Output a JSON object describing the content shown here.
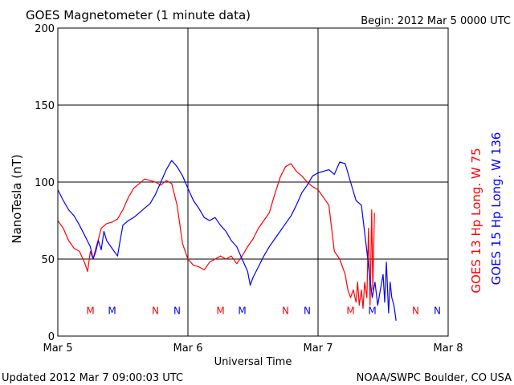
{
  "header": {
    "title": "GOES Magnetometer (1 minute data)",
    "begin": "Begin:  2012 Mar 5 0000 UTC"
  },
  "footer": {
    "updated": "Updated 2012 Mar  7 09:00:03 UTC",
    "source": "NOAA/SWPC Boulder, CO USA"
  },
  "chart_data": {
    "type": "line",
    "title": "GOES Magnetometer (1 minute data)",
    "xlabel": "Universal Time",
    "ylabel": "NanoTesla (nT)",
    "xlim": [
      0,
      72
    ],
    "ylim": [
      0,
      200
    ],
    "x_unit": "hours since 2012 Mar 5 0000 UTC",
    "x_ticks": [
      {
        "value": 0,
        "label": "Mar 5"
      },
      {
        "value": 24,
        "label": "Mar 6"
      },
      {
        "value": 48,
        "label": "Mar 7"
      },
      {
        "value": 72,
        "label": "Mar 8"
      }
    ],
    "y_ticks": [
      0,
      50,
      100,
      150,
      200
    ],
    "grid": true,
    "series": [
      {
        "name": "GOES 13 Hp  Long. W 75",
        "color": "#ff0000",
        "points": [
          [
            0,
            75
          ],
          [
            1,
            70
          ],
          [
            2,
            62
          ],
          [
            3,
            57
          ],
          [
            4,
            55
          ],
          [
            5,
            47
          ],
          [
            5.5,
            42
          ],
          [
            6,
            55
          ],
          [
            6.5,
            50
          ],
          [
            7,
            57
          ],
          [
            7.5,
            63
          ],
          [
            8,
            70
          ],
          [
            9,
            73
          ],
          [
            10,
            74
          ],
          [
            11,
            76
          ],
          [
            12,
            82
          ],
          [
            13,
            90
          ],
          [
            14,
            96
          ],
          [
            15,
            99
          ],
          [
            16,
            102
          ],
          [
            17,
            101
          ],
          [
            18,
            100
          ],
          [
            19,
            98
          ],
          [
            20,
            101
          ],
          [
            21,
            99
          ],
          [
            22,
            85
          ],
          [
            23,
            60
          ],
          [
            24,
            50
          ],
          [
            25,
            46
          ],
          [
            26,
            45
          ],
          [
            27,
            43
          ],
          [
            28,
            48
          ],
          [
            29,
            50
          ],
          [
            30,
            52
          ],
          [
            31,
            50
          ],
          [
            32,
            52
          ],
          [
            33,
            47
          ],
          [
            34,
            52
          ],
          [
            35,
            58
          ],
          [
            36,
            63
          ],
          [
            37,
            70
          ],
          [
            38,
            75
          ],
          [
            39,
            80
          ],
          [
            40,
            92
          ],
          [
            41,
            103
          ],
          [
            42,
            110
          ],
          [
            43,
            112
          ],
          [
            44,
            107
          ],
          [
            45,
            104
          ],
          [
            46,
            100
          ],
          [
            47,
            97
          ],
          [
            48,
            95
          ],
          [
            49,
            90
          ],
          [
            50,
            85
          ],
          [
            50.5,
            70
          ],
          [
            51,
            55
          ],
          [
            52,
            50
          ],
          [
            53,
            40
          ],
          [
            53.5,
            30
          ],
          [
            54,
            25
          ],
          [
            54.5,
            30
          ],
          [
            55,
            22
          ],
          [
            55.3,
            35
          ],
          [
            55.6,
            20
          ],
          [
            56,
            30
          ],
          [
            56.3,
            18
          ],
          [
            56.6,
            35
          ],
          [
            57,
            25
          ],
          [
            57.3,
            70
          ],
          [
            57.6,
            20
          ],
          [
            57.9,
            82
          ],
          [
            58.1,
            30
          ],
          [
            58.4,
            80
          ]
        ]
      },
      {
        "name": "GOES 15 Hp  Long. W 136",
        "color": "#0000ff",
        "points": [
          [
            0,
            95
          ],
          [
            1,
            88
          ],
          [
            2,
            82
          ],
          [
            3,
            78
          ],
          [
            4,
            72
          ],
          [
            5,
            65
          ],
          [
            6,
            58
          ],
          [
            6.5,
            50
          ],
          [
            7,
            55
          ],
          [
            7.5,
            62
          ],
          [
            8,
            56
          ],
          [
            8.5,
            68
          ],
          [
            9,
            62
          ],
          [
            10,
            57
          ],
          [
            11,
            52
          ],
          [
            11.5,
            62
          ],
          [
            12,
            72
          ],
          [
            13,
            75
          ],
          [
            14,
            77
          ],
          [
            15,
            80
          ],
          [
            16,
            83
          ],
          [
            17,
            86
          ],
          [
            18,
            92
          ],
          [
            19,
            100
          ],
          [
            20,
            108
          ],
          [
            21,
            114
          ],
          [
            22,
            110
          ],
          [
            23,
            104
          ],
          [
            24,
            96
          ],
          [
            25,
            88
          ],
          [
            26,
            83
          ],
          [
            27,
            77
          ],
          [
            28,
            75
          ],
          [
            29,
            77
          ],
          [
            30,
            72
          ],
          [
            31,
            68
          ],
          [
            32,
            62
          ],
          [
            33,
            58
          ],
          [
            34,
            50
          ],
          [
            35,
            42
          ],
          [
            35.5,
            33
          ],
          [
            36,
            38
          ],
          [
            37,
            45
          ],
          [
            38,
            52
          ],
          [
            39,
            58
          ],
          [
            40,
            63
          ],
          [
            41,
            68
          ],
          [
            42,
            73
          ],
          [
            43,
            78
          ],
          [
            44,
            85
          ],
          [
            45,
            93
          ],
          [
            46,
            98
          ],
          [
            47,
            104
          ],
          [
            48,
            106
          ],
          [
            49,
            107
          ],
          [
            50,
            108
          ],
          [
            51,
            105
          ],
          [
            52,
            113
          ],
          [
            53,
            112
          ],
          [
            54,
            100
          ],
          [
            55,
            88
          ],
          [
            56,
            85
          ],
          [
            56.5,
            70
          ],
          [
            57,
            55
          ],
          [
            57.5,
            40
          ],
          [
            58,
            25
          ],
          [
            58.5,
            35
          ],
          [
            59,
            20
          ],
          [
            59.5,
            30
          ],
          [
            60,
            40
          ],
          [
            60.3,
            22
          ],
          [
            60.6,
            48
          ],
          [
            61,
            15
          ],
          [
            61.3,
            35
          ],
          [
            61.6,
            25
          ],
          [
            62,
            20
          ],
          [
            62.4,
            10
          ]
        ]
      }
    ],
    "event_markers": [
      {
        "x": 6,
        "label": "M",
        "color": "#ff0000"
      },
      {
        "x": 10,
        "label": "M",
        "color": "#0000ff"
      },
      {
        "x": 18,
        "label": "N",
        "color": "#ff0000"
      },
      {
        "x": 22,
        "label": "N",
        "color": "#0000ff"
      },
      {
        "x": 30,
        "label": "M",
        "color": "#ff0000"
      },
      {
        "x": 34,
        "label": "M",
        "color": "#0000ff"
      },
      {
        "x": 42,
        "label": "N",
        "color": "#ff0000"
      },
      {
        "x": 46,
        "label": "N",
        "color": "#0000ff"
      },
      {
        "x": 54,
        "label": "M",
        "color": "#ff0000"
      },
      {
        "x": 58,
        "label": "M",
        "color": "#0000ff"
      },
      {
        "x": 66,
        "label": "N",
        "color": "#ff0000"
      },
      {
        "x": 70,
        "label": "N",
        "color": "#0000ff"
      }
    ],
    "marker_y": 17
  }
}
